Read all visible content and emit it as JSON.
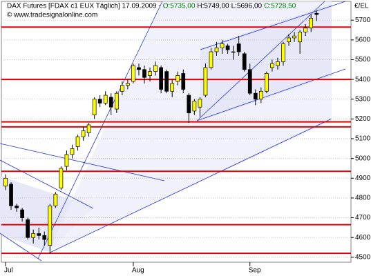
{
  "chart_data": {
    "type": "candlestick",
    "title": "DAX Futures [FDAX c1 EUX  Täglich] 17.09.2009 -",
    "title_open": "O:5735,00",
    "title_high": "H:5749,00",
    "title_low": "L:5696,00",
    "title_close": "C:5728,50",
    "watermark": "© www.tradesignalonline.com",
    "y_axis_label": "€/EL",
    "categories": [
      "Jul",
      null,
      null,
      null,
      null,
      null,
      null,
      null,
      null,
      null,
      null,
      null,
      null,
      null,
      null,
      null,
      null,
      null,
      null,
      null,
      null,
      null,
      null,
      "Aug",
      null,
      null,
      null,
      null,
      null,
      null,
      null,
      null,
      null,
      null,
      null,
      null,
      null,
      null,
      null,
      null,
      null,
      null,
      null,
      null,
      "Sep",
      null,
      null,
      null,
      null,
      null,
      null,
      null,
      null,
      null,
      null,
      null,
      null
    ],
    "open": [
      4860,
      4870,
      4760,
      4740,
      4690,
      4600,
      4620,
      4610,
      4560,
      4760,
      4850,
      4960,
      5020,
      5060,
      5110,
      5130,
      5220,
      5300,
      5280,
      5310,
      5250,
      5340,
      5370,
      5390,
      5460,
      5450,
      5420,
      5440,
      5460,
      5440,
      5340,
      5390,
      5430,
      5320,
      5240,
      5260,
      5320,
      5460,
      5540,
      5560,
      5570,
      5540,
      5580,
      5530,
      5450,
      5330,
      5300,
      5340,
      5460,
      5470,
      5490,
      5590,
      5610,
      5590,
      5640,
      5660,
      5735
    ],
    "high": [
      4920,
      4880,
      4770,
      4750,
      4700,
      4640,
      4650,
      4630,
      4770,
      4830,
      4960,
      5040,
      5070,
      5120,
      5160,
      5180,
      5310,
      5320,
      5340,
      5330,
      5340,
      5390,
      5400,
      5480,
      5480,
      5470,
      5460,
      5490,
      5470,
      5450,
      5400,
      5440,
      5450,
      5330,
      5300,
      5310,
      5480,
      5560,
      5590,
      5600,
      5580,
      5570,
      5620,
      5540,
      5480,
      5350,
      5360,
      5440,
      5500,
      5510,
      5590,
      5630,
      5640,
      5650,
      5680,
      5730,
      5749
    ],
    "low": [
      4840,
      4740,
      4730,
      4680,
      4590,
      4570,
      4590,
      4560,
      4520,
      4750,
      4840,
      4940,
      5000,
      5040,
      5090,
      5110,
      5200,
      5260,
      5270,
      5220,
      5230,
      5320,
      5350,
      5380,
      5420,
      5380,
      5390,
      5420,
      5330,
      5330,
      5310,
      5370,
      5330,
      5180,
      5220,
      5210,
      5310,
      5450,
      5520,
      5530,
      5530,
      5500,
      5520,
      5440,
      5320,
      5270,
      5280,
      5330,
      5440,
      5450,
      5470,
      5570,
      5590,
      5530,
      5620,
      5640,
      5696
    ],
    "close": [
      4900,
      4760,
      4750,
      4700,
      4600,
      4620,
      4610,
      4590,
      4760,
      4820,
      4950,
      5020,
      5050,
      5110,
      5140,
      5170,
      5300,
      5280,
      5320,
      5260,
      5330,
      5370,
      5380,
      5470,
      5450,
      5410,
      5440,
      5470,
      5350,
      5340,
      5380,
      5420,
      5350,
      5230,
      5290,
      5300,
      5460,
      5540,
      5560,
      5580,
      5550,
      5540,
      5540,
      5450,
      5330,
      5300,
      5340,
      5430,
      5480,
      5490,
      5580,
      5610,
      5620,
      5640,
      5660,
      5710,
      5728.5
    ],
    "up_color": "#ffff00",
    "down_color": "#000000",
    "level_color": "#e00000",
    "levels": [
      5665,
      5400,
      5185,
      5160,
      4935,
      4665,
      4520
    ],
    "ylim": [
      4475,
      5795
    ],
    "yticks": [
      4500,
      4600,
      4700,
      4800,
      4900,
      5000,
      5100,
      5200,
      5300,
      5400,
      5500,
      5600,
      5700
    ],
    "grid": true
  }
}
